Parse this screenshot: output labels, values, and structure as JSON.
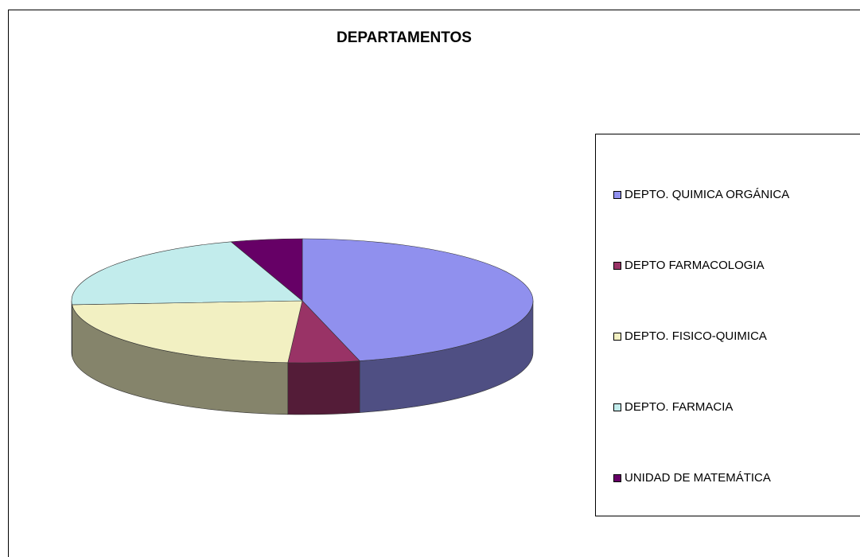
{
  "chart_data": {
    "type": "pie",
    "title": "DEPARTAMENTOS",
    "categories": [
      "DEPTO. QUIMICA ORGÁNICA",
      "DEPTO FARMACOLOGIA",
      "DEPTO. FISICO-QUIMICA",
      "DEPTO. FARMACIA",
      "UNIDAD DE MATEMÁTICA"
    ],
    "values": [
      46,
      5,
      23,
      21,
      5
    ],
    "colors": [
      "#9090ee",
      "#993366",
      "#f2f0c2",
      "#c2ecec",
      "#660066"
    ],
    "legend": "right"
  }
}
